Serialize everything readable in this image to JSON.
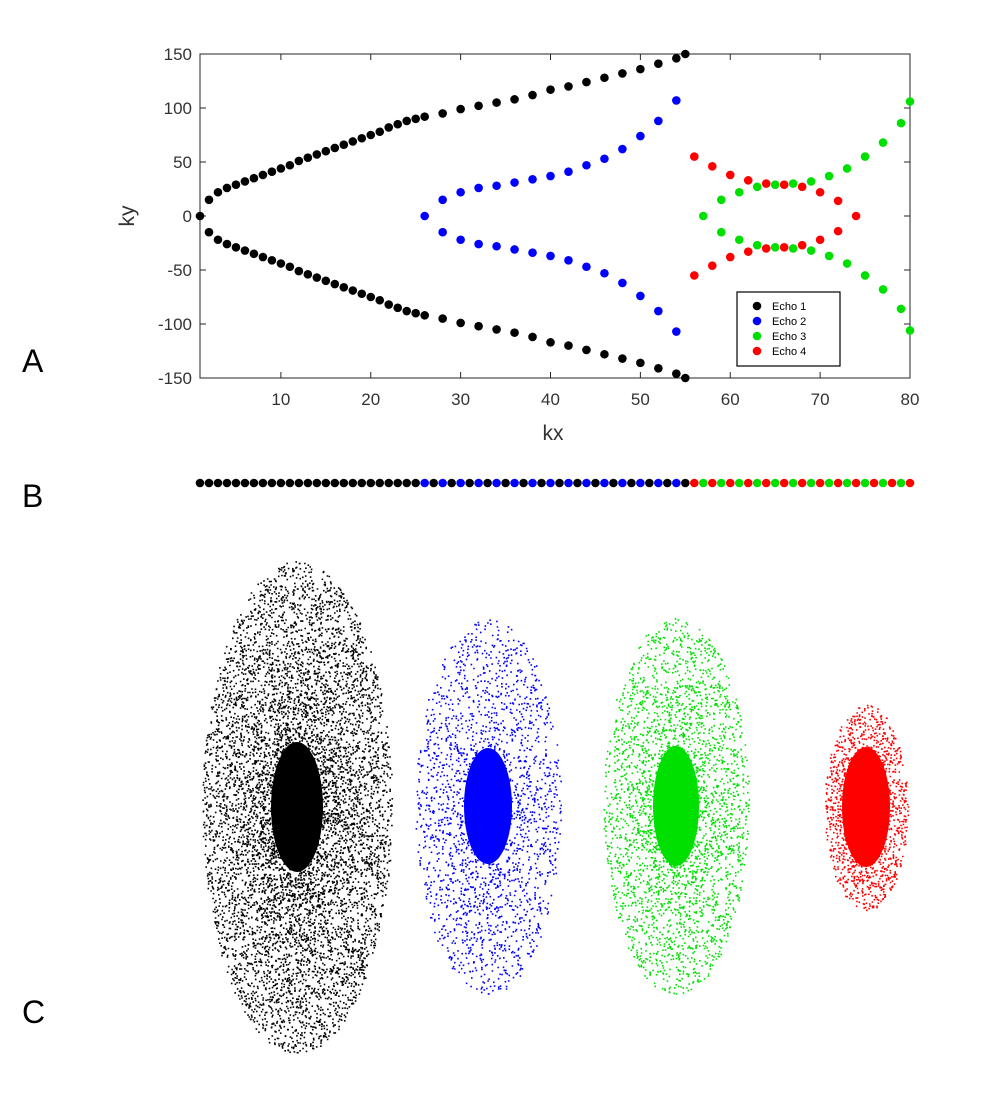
{
  "panels": {
    "a": "A",
    "b": "B",
    "c": "C"
  },
  "chart_data": [
    {
      "type": "scatter",
      "title": "",
      "xlabel": "kx",
      "ylabel": "ky",
      "xlim": [
        1,
        80
      ],
      "ylim": [
        -150,
        150
      ],
      "xticks": [
        10,
        20,
        30,
        40,
        50,
        60,
        70,
        80
      ],
      "yticks": [
        150,
        100,
        50,
        0,
        -50,
        -100,
        -150
      ],
      "legend_position": "bottom-right",
      "series": [
        {
          "name": "Echo 1",
          "color": "#000000",
          "x": [
            1,
            2,
            3,
            4,
            5,
            6,
            7,
            8,
            9,
            10,
            11,
            12,
            13,
            14,
            15,
            16,
            17,
            18,
            19,
            20,
            21,
            22,
            23,
            24,
            25,
            26,
            28,
            30,
            32,
            34,
            36,
            38,
            40,
            42,
            44,
            46,
            48,
            50,
            52,
            54,
            55
          ],
          "y_upper": [
            0,
            15,
            22,
            26,
            29,
            32,
            35,
            38,
            41,
            44,
            47,
            51,
            54,
            57,
            60,
            63,
            66,
            69,
            72,
            75,
            78,
            82,
            85,
            88,
            90,
            92,
            95,
            99,
            102,
            105,
            108,
            112,
            117,
            120,
            124,
            128,
            132,
            136,
            141,
            146,
            150
          ]
        },
        {
          "name": "Echo 2",
          "color": "#0000ff",
          "x": [
            26,
            28,
            30,
            32,
            34,
            36,
            38,
            40,
            42,
            44,
            46,
            48,
            50,
            52,
            54
          ],
          "y_upper": [
            0,
            15,
            22,
            26,
            28,
            31,
            34,
            37,
            41,
            47,
            53,
            62,
            74,
            88,
            107
          ]
        },
        {
          "name": "Echo 3",
          "color": "#00e000",
          "x": [
            57,
            59,
            61,
            63,
            65,
            67,
            69,
            71,
            73,
            75,
            77,
            79,
            80
          ],
          "y_upper": [
            0,
            15,
            22,
            27,
            29,
            30,
            32,
            37,
            44,
            55,
            68,
            86,
            106
          ]
        },
        {
          "name": "Echo 4",
          "color": "#ff0000",
          "x": [
            56,
            58,
            60,
            62,
            64,
            66,
            68,
            70,
            72,
            74
          ],
          "y_upper": [
            55,
            46,
            38,
            33,
            30,
            29,
            27,
            22,
            14,
            0
          ]
        }
      ]
    },
    {
      "type": "scatter",
      "title": "",
      "description_series": "single row of 80 dots colored by echo",
      "dots": 80,
      "pattern_first_55": "black with blue interleaved at every other position from 26 to 54",
      "pattern_last_25": "alternating green and red"
    }
  ],
  "ellipses": [
    {
      "name": "Echo 1",
      "color": "#000000"
    },
    {
      "name": "Echo 2",
      "color": "#0000ff"
    },
    {
      "name": "Echo 3",
      "color": "#00e000"
    },
    {
      "name": "Echo 4",
      "color": "#ff0000"
    }
  ]
}
